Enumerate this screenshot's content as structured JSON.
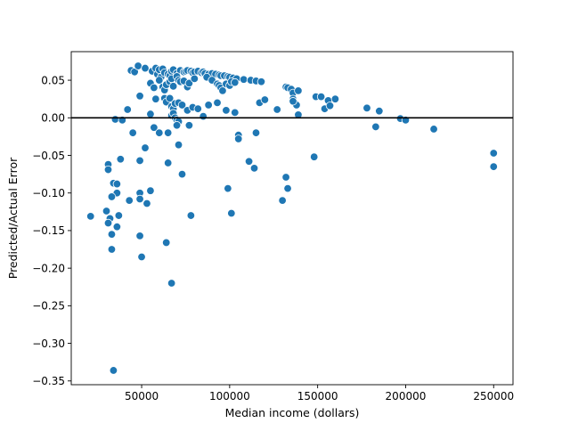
{
  "chart_data": {
    "type": "scatter",
    "title": "",
    "xlabel": "Median income (dollars)",
    "ylabel": "Predicted/Actual Error",
    "xlim": [
      10000,
      261000
    ],
    "ylim": [
      -0.355,
      0.088
    ],
    "xticks": [
      50000,
      100000,
      150000,
      200000,
      250000
    ],
    "xtick_labels": [
      "50000",
      "100000",
      "150000",
      "200000",
      "250000"
    ],
    "yticks": [
      0.05,
      0.0,
      -0.05,
      -0.1,
      -0.15,
      -0.2,
      -0.25,
      -0.3,
      -0.35
    ],
    "ytick_labels": [
      "0.05",
      "0.00",
      "−0.05",
      "−0.10",
      "−0.15",
      "−0.20",
      "−0.25",
      "−0.30",
      "−0.35"
    ],
    "reference_line_y": 0.0,
    "grid": false,
    "marker_color": "#1f77b4",
    "reference_line_color": "#000000",
    "series": [
      {
        "points": [
          [
            44000,
            0.063
          ],
          [
            46000,
            0.061
          ],
          [
            48000,
            0.069
          ],
          [
            52000,
            0.066
          ],
          [
            56000,
            0.062
          ],
          [
            58000,
            0.066
          ],
          [
            59000,
            0.058
          ],
          [
            60000,
            0.064
          ],
          [
            61000,
            0.054
          ],
          [
            62000,
            0.065
          ],
          [
            63000,
            0.06
          ],
          [
            65000,
            0.058
          ],
          [
            66000,
            0.056
          ],
          [
            67000,
            0.062
          ],
          [
            68000,
            0.064
          ],
          [
            70000,
            0.059
          ],
          [
            72000,
            0.063
          ],
          [
            74000,
            0.061
          ],
          [
            75000,
            0.062
          ],
          [
            76000,
            0.063
          ],
          [
            78000,
            0.062
          ],
          [
            79000,
            0.06
          ],
          [
            80000,
            0.061
          ],
          [
            82000,
            0.062
          ],
          [
            84000,
            0.06
          ],
          [
            85000,
            0.061
          ],
          [
            86000,
            0.059
          ],
          [
            88000,
            0.058
          ],
          [
            90000,
            0.059
          ],
          [
            92000,
            0.058
          ],
          [
            94000,
            0.057
          ],
          [
            95000,
            0.056
          ],
          [
            97000,
            0.056
          ],
          [
            99000,
            0.055
          ],
          [
            100000,
            0.054
          ],
          [
            102000,
            0.053
          ],
          [
            104000,
            0.052
          ],
          [
            108000,
            0.051
          ],
          [
            112000,
            0.05
          ],
          [
            115000,
            0.049
          ],
          [
            118000,
            0.048
          ],
          [
            55000,
            0.046
          ],
          [
            57000,
            0.04
          ],
          [
            60000,
            0.05
          ],
          [
            62000,
            0.041
          ],
          [
            63000,
            0.037
          ],
          [
            64000,
            0.044
          ],
          [
            66000,
            0.048
          ],
          [
            67000,
            0.052
          ],
          [
            68000,
            0.042
          ],
          [
            70000,
            0.055
          ],
          [
            71000,
            0.05
          ],
          [
            72000,
            0.048
          ],
          [
            74000,
            0.049
          ],
          [
            76000,
            0.041
          ],
          [
            77000,
            0.046
          ],
          [
            80000,
            0.052
          ],
          [
            87000,
            0.054
          ],
          [
            90000,
            0.05
          ],
          [
            93000,
            0.045
          ],
          [
            94000,
            0.043
          ],
          [
            95000,
            0.04
          ],
          [
            96000,
            0.036
          ],
          [
            98000,
            0.045
          ],
          [
            100000,
            0.043
          ],
          [
            101000,
            0.048
          ],
          [
            103000,
            0.047
          ],
          [
            132000,
            0.041
          ],
          [
            133000,
            0.04
          ],
          [
            135000,
            0.038
          ],
          [
            136000,
            0.033
          ],
          [
            139000,
            0.036
          ],
          [
            136000,
            0.025
          ],
          [
            137000,
            0.02
          ],
          [
            138000,
            0.017
          ],
          [
            136000,
            0.022
          ],
          [
            149000,
            0.028
          ],
          [
            152000,
            0.028
          ],
          [
            154000,
            0.012
          ],
          [
            156000,
            0.023
          ],
          [
            157000,
            0.016
          ],
          [
            160000,
            0.025
          ],
          [
            178000,
            0.013
          ],
          [
            185000,
            0.009
          ],
          [
            49000,
            0.029
          ],
          [
            58000,
            0.025
          ],
          [
            63000,
            0.026
          ],
          [
            64000,
            0.021
          ],
          [
            66000,
            0.026
          ],
          [
            67000,
            0.015
          ],
          [
            68000,
            0.012
          ],
          [
            69000,
            0.019
          ],
          [
            71000,
            0.02
          ],
          [
            73000,
            0.017
          ],
          [
            76000,
            0.01
          ],
          [
            79000,
            0.014
          ],
          [
            82000,
            0.012
          ],
          [
            88000,
            0.017
          ],
          [
            93000,
            0.02
          ],
          [
            98000,
            0.01
          ],
          [
            103000,
            0.007
          ],
          [
            117000,
            0.02
          ],
          [
            120000,
            0.024
          ],
          [
            127000,
            0.011
          ],
          [
            139000,
            0.004
          ],
          [
            42000,
            0.011
          ],
          [
            55000,
            0.005
          ],
          [
            67000,
            0.003
          ],
          [
            68000,
            0.006
          ],
          [
            69000,
            0.0
          ],
          [
            70000,
            -0.003
          ],
          [
            71000,
            -0.005
          ],
          [
            35000,
            -0.002
          ],
          [
            39000,
            -0.003
          ],
          [
            57000,
            -0.013
          ],
          [
            60000,
            -0.02
          ],
          [
            65000,
            -0.02
          ],
          [
            70000,
            -0.01
          ],
          [
            77000,
            -0.01
          ],
          [
            85000,
            0.002
          ],
          [
            105000,
            -0.023
          ],
          [
            105000,
            -0.028
          ],
          [
            115000,
            -0.02
          ],
          [
            183000,
            -0.012
          ],
          [
            197000,
            -0.001
          ],
          [
            200000,
            -0.003
          ],
          [
            216000,
            -0.015
          ],
          [
            45000,
            -0.02
          ],
          [
            52000,
            -0.04
          ],
          [
            71000,
            -0.036
          ],
          [
            31000,
            -0.062
          ],
          [
            31000,
            -0.069
          ],
          [
            38000,
            -0.055
          ],
          [
            49000,
            -0.057
          ],
          [
            65000,
            -0.06
          ],
          [
            73000,
            -0.075
          ],
          [
            111000,
            -0.058
          ],
          [
            114000,
            -0.067
          ],
          [
            132000,
            -0.079
          ],
          [
            133000,
            -0.094
          ],
          [
            148000,
            -0.052
          ],
          [
            250000,
            -0.047
          ],
          [
            250000,
            -0.065
          ],
          [
            34000,
            -0.087
          ],
          [
            36000,
            -0.088
          ],
          [
            36000,
            -0.1
          ],
          [
            33000,
            -0.105
          ],
          [
            43000,
            -0.11
          ],
          [
            49000,
            -0.1
          ],
          [
            49000,
            -0.108
          ],
          [
            53000,
            -0.114
          ],
          [
            55000,
            -0.097
          ],
          [
            99000,
            -0.094
          ],
          [
            130000,
            -0.11
          ],
          [
            30000,
            -0.124
          ],
          [
            21000,
            -0.131
          ],
          [
            32000,
            -0.134
          ],
          [
            31000,
            -0.14
          ],
          [
            37000,
            -0.13
          ],
          [
            36000,
            -0.145
          ],
          [
            33000,
            -0.155
          ],
          [
            49000,
            -0.157
          ],
          [
            78000,
            -0.13
          ],
          [
            101000,
            -0.127
          ],
          [
            64000,
            -0.166
          ],
          [
            33000,
            -0.175
          ],
          [
            50000,
            -0.185
          ],
          [
            67000,
            -0.22
          ],
          [
            34000,
            -0.336
          ]
        ]
      }
    ]
  }
}
